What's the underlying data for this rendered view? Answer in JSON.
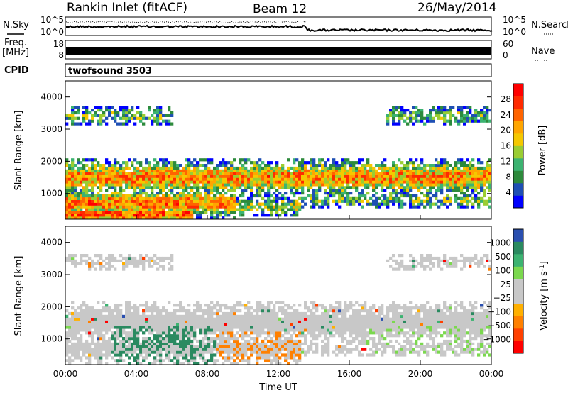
{
  "header": {
    "station": "Rankin Inlet (fitACF)",
    "beam": "Beam 12",
    "date": "26/May/2014"
  },
  "strip_nsky": {
    "label": "N.Sky",
    "ticks_left": [
      "10^5",
      "10^0"
    ],
    "ticks_right": [
      "10^5",
      "10^0"
    ],
    "right_label": "N.Search"
  },
  "strip_freq": {
    "label": "Freq.",
    "unit": "[MHz]",
    "ticks_left": [
      "18",
      "8"
    ],
    "ticks_right": [
      "60",
      "0"
    ],
    "right_label": "Nave"
  },
  "strip_cpid": {
    "label": "CPID",
    "value": "twofsound 3503"
  },
  "colors": {
    "power_scale": [
      "#0000ff",
      "#1e4fb4",
      "#2d8a3c",
      "#3cb371",
      "#9acd32",
      "#f5c800",
      "#ffa500",
      "#ff6400",
      "#ff2a00",
      "#ff0000"
    ],
    "velocity_scale": [
      "#2a4fb0",
      "#2a8a60",
      "#3cb371",
      "#7bd84e",
      "#c8c8c8",
      "#c8c8c8",
      "#ffb000",
      "#ff8000",
      "#ff4000",
      "#ff0000"
    ]
  },
  "chart_data": [
    {
      "type": "heatmap",
      "name": "power",
      "ylabel": "Slant Range [km]",
      "yticks": [
        "1000",
        "2000",
        "3000",
        "4000"
      ],
      "ylim": [
        200,
        4500
      ],
      "xlim": [
        "00:00",
        "24:00"
      ],
      "colorbar": {
        "label": "Power [dB]",
        "ticks": [
          "4",
          "8",
          "12",
          "16",
          "20",
          "24",
          "28"
        ],
        "range": [
          0,
          32
        ]
      }
    },
    {
      "type": "heatmap",
      "name": "velocity",
      "ylabel": "Slant Range [km]",
      "yticks": [
        "1000",
        "2000",
        "3000",
        "4000"
      ],
      "ylim": [
        200,
        4500
      ],
      "xlim": [
        "00:00",
        "24:00"
      ],
      "xlabel": "Time UT",
      "xticks": [
        "00:00",
        "04:00",
        "08:00",
        "12:00",
        "16:00",
        "20:00",
        "00:00"
      ],
      "colorbar": {
        "label": "Velocity [m s",
        "label_sup": "-1",
        "label_end": "]",
        "ticks": [
          "1000",
          "500",
          "100",
          "25",
          "−25",
          "−100",
          "−500",
          "−1000"
        ]
      }
    }
  ]
}
